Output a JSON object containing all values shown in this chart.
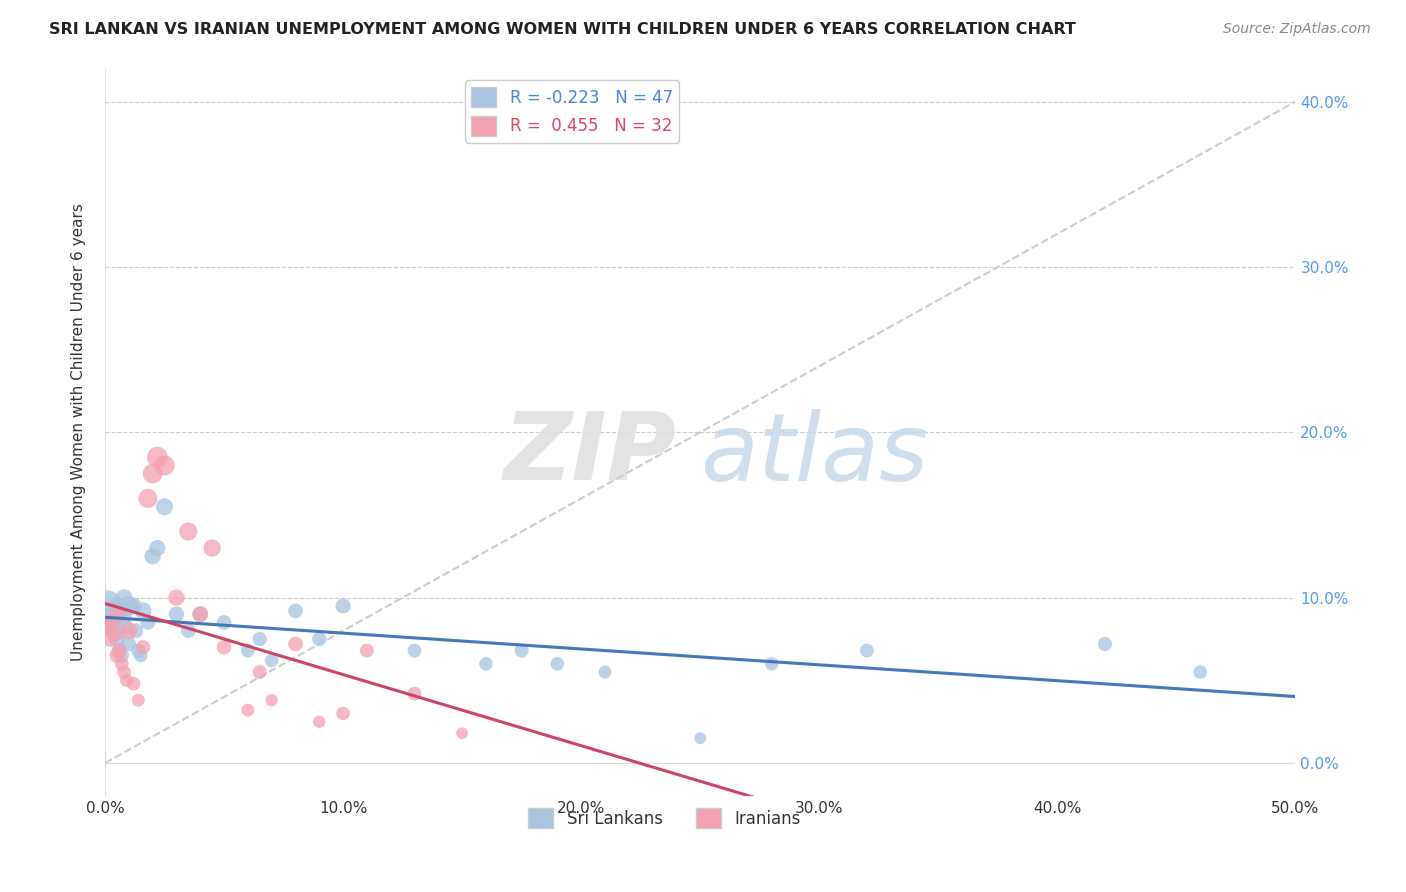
{
  "title": "SRI LANKAN VS IRANIAN UNEMPLOYMENT AMONG WOMEN WITH CHILDREN UNDER 6 YEARS CORRELATION CHART",
  "source": "Source: ZipAtlas.com",
  "ylabel": "Unemployment Among Women with Children Under 6 years",
  "xlim": [
    0.0,
    0.5
  ],
  "ylim": [
    -0.02,
    0.42
  ],
  "yticks_right": [
    0.0,
    0.1,
    0.2,
    0.3,
    0.4
  ],
  "xticks": [
    0.0,
    0.1,
    0.2,
    0.3,
    0.4,
    0.5
  ],
  "sri_lankan_color": "#a8c4e0",
  "iranian_color": "#f4a0b0",
  "sri_lankan_line_color": "#4477bb",
  "iranian_line_color": "#cc4466",
  "trend_line_color": "#cccccc",
  "sri_R": -0.223,
  "sri_N": 47,
  "iranian_R": 0.455,
  "iranian_N": 32,
  "sri_lankan_x": [
    0.001,
    0.002,
    0.002,
    0.003,
    0.003,
    0.004,
    0.004,
    0.005,
    0.005,
    0.006,
    0.006,
    0.007,
    0.007,
    0.008,
    0.008,
    0.009,
    0.01,
    0.01,
    0.012,
    0.013,
    0.014,
    0.015,
    0.016,
    0.018,
    0.02,
    0.022,
    0.025,
    0.03,
    0.035,
    0.04,
    0.05,
    0.06,
    0.065,
    0.07,
    0.08,
    0.09,
    0.1,
    0.13,
    0.16,
    0.175,
    0.19,
    0.21,
    0.25,
    0.28,
    0.32,
    0.42,
    0.46
  ],
  "sri_lankan_y": [
    0.095,
    0.09,
    0.085,
    0.092,
    0.082,
    0.088,
    0.078,
    0.075,
    0.095,
    0.08,
    0.068,
    0.092,
    0.065,
    0.1,
    0.088,
    0.082,
    0.095,
    0.072,
    0.095,
    0.08,
    0.068,
    0.065,
    0.092,
    0.085,
    0.125,
    0.13,
    0.155,
    0.09,
    0.08,
    0.09,
    0.085,
    0.068,
    0.075,
    0.062,
    0.092,
    0.075,
    0.095,
    0.068,
    0.06,
    0.068,
    0.06,
    0.055,
    0.015,
    0.06,
    0.068,
    0.072,
    0.055
  ],
  "sri_lankan_size": [
    200,
    80,
    60,
    70,
    55,
    60,
    50,
    55,
    65,
    70,
    50,
    55,
    45,
    60,
    50,
    45,
    80,
    45,
    55,
    45,
    40,
    38,
    60,
    45,
    55,
    55,
    60,
    50,
    45,
    50,
    45,
    40,
    42,
    38,
    45,
    42,
    48,
    40,
    38,
    40,
    38,
    35,
    30,
    38,
    40,
    42,
    38
  ],
  "iranian_x": [
    0.001,
    0.002,
    0.003,
    0.004,
    0.005,
    0.005,
    0.006,
    0.007,
    0.008,
    0.009,
    0.01,
    0.012,
    0.014,
    0.016,
    0.018,
    0.02,
    0.022,
    0.025,
    0.03,
    0.035,
    0.04,
    0.045,
    0.05,
    0.06,
    0.065,
    0.07,
    0.08,
    0.09,
    0.1,
    0.11,
    0.13,
    0.15
  ],
  "iranian_y": [
    0.082,
    0.075,
    0.085,
    0.078,
    0.09,
    0.065,
    0.068,
    0.06,
    0.055,
    0.05,
    0.08,
    0.048,
    0.038,
    0.07,
    0.16,
    0.175,
    0.185,
    0.18,
    0.1,
    0.14,
    0.09,
    0.13,
    0.07,
    0.032,
    0.055,
    0.038,
    0.072,
    0.025,
    0.03,
    0.068,
    0.042,
    0.018
  ],
  "iranian_size": [
    55,
    50,
    55,
    48,
    55,
    45,
    45,
    40,
    38,
    35,
    60,
    40,
    35,
    42,
    75,
    80,
    88,
    85,
    55,
    68,
    52,
    62,
    45,
    35,
    40,
    32,
    45,
    32,
    38,
    40,
    40,
    28
  ],
  "watermark_zip": "ZIP",
  "watermark_atlas": "atlas",
  "background_color": "#ffffff",
  "grid_color": "#dddddd",
  "grid_color_dashed": "#cccccc"
}
